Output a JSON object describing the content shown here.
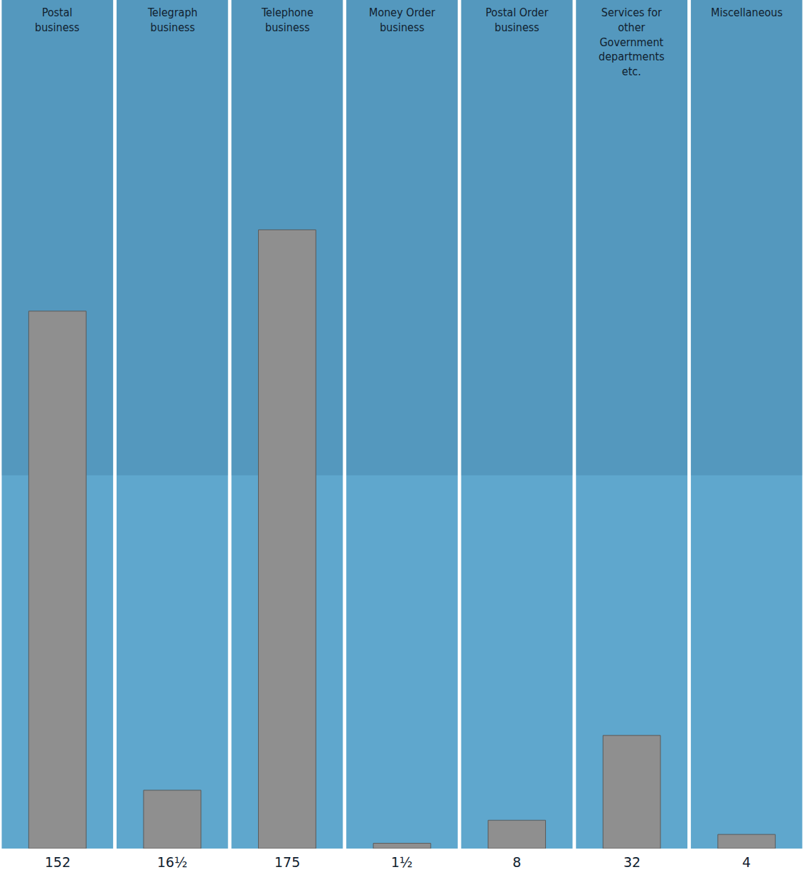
{
  "chart_data": {
    "type": "bar",
    "categories": [
      "Postal business",
      "Telegraph business",
      "Telephone business",
      "Money Order business",
      "Postal Order business",
      "Services for other Government departments etc.",
      "Miscellaneous"
    ],
    "values": [
      152,
      16.5,
      175,
      1.5,
      8,
      32,
      4
    ],
    "value_labels": [
      "152",
      "16½",
      "175",
      "1½",
      "8",
      "32",
      "4"
    ],
    "data_labels": true,
    "color": "#8f8f8f",
    "ylim": [
      0,
      240
    ],
    "tick_labels": false,
    "grid": false
  }
}
